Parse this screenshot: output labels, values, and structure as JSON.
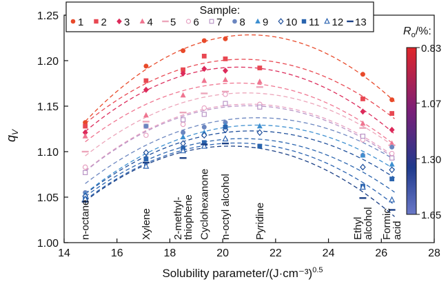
{
  "chart_data": {
    "type": "scatter",
    "title": "",
    "xlabel": "Solubility parameter/(J·cm⁻³)",
    "xlabel_exponent": "0.5",
    "ylabel_main": "q",
    "ylabel_sub": "V",
    "xlim": [
      14,
      28
    ],
    "ylim": [
      1.0,
      1.25
    ],
    "xticks": [
      "14",
      "16",
      "18",
      "20",
      "22",
      "24",
      "26",
      "28"
    ],
    "yticks": [
      "1.00",
      "1.05",
      "1.10",
      "1.15",
      "1.20",
      "1.25"
    ],
    "grid": false,
    "legend": {
      "title": "Sample:",
      "position": "top",
      "entries": [
        "1",
        "2",
        "3",
        "4",
        "5",
        "6",
        "7",
        "8",
        "9",
        "10",
        "11",
        "12",
        "13"
      ]
    },
    "solvents": [
      {
        "name": "n-octane",
        "lines": [
          "n-octane"
        ],
        "x": 14.8
      },
      {
        "name": "Xylene",
        "lines": [
          "Xylene"
        ],
        "x": 17.1
      },
      {
        "name": "2-methylthiophene",
        "lines": [
          "2-methyl-",
          "thiophene"
        ],
        "x": 18.5
      },
      {
        "name": "Cyclohexanone",
        "lines": [
          "Cyclohexanone"
        ],
        "x": 19.3
      },
      {
        "name": "n-octyl alcohol",
        "lines": [
          "n-octyl alcohol"
        ],
        "x": 20.1
      },
      {
        "name": "Pyridine",
        "lines": [
          "Pyridine"
        ],
        "x": 21.4
      },
      {
        "name": "Ethyl alcohol",
        "lines": [
          "Ethyl",
          "alcohol"
        ],
        "x": 25.3
      },
      {
        "name": "Formic acid",
        "lines": [
          "Formic",
          "acid"
        ],
        "x": 26.4
      }
    ],
    "colorbar": {
      "title_main": "R",
      "title_sub": "o",
      "title_rest": "/%:",
      "tick_labels": [
        "0.83",
        "1.07",
        "1.30",
        "1.65"
      ],
      "colors": [
        "#e0262a",
        "#7a1f78",
        "#1f3a8c",
        "#6a78c8"
      ]
    },
    "series": [
      {
        "name": "1",
        "color": "#e84a2a",
        "marker": "circle-filled",
        "values": [
          1.132,
          1.194,
          1.211,
          1.222,
          1.224,
          null,
          1.185,
          1.157
        ]
      },
      {
        "name": "2",
        "color": "#e84852",
        "marker": "square-filled",
        "values": [
          1.128,
          1.178,
          1.19,
          1.205,
          1.202,
          1.192,
          1.158,
          1.142
        ]
      },
      {
        "name": "3",
        "color": "#dc2a5a",
        "marker": "diamond-filled",
        "values": [
          1.121,
          1.168,
          1.186,
          1.191,
          1.189,
          null,
          1.144,
          1.124
        ]
      },
      {
        "name": "4",
        "color": "#ef7590",
        "marker": "triangle-filled",
        "values": [
          1.117,
          1.14,
          1.162,
          1.178,
          1.179,
          1.177,
          1.131,
          1.109
        ]
      },
      {
        "name": "5",
        "color": "#eca5ba",
        "marker": "dash",
        "values": [
          1.1,
          1.133,
          1.143,
          1.164,
          1.166,
          1.171,
          1.126,
          1.107
        ]
      },
      {
        "name": "6",
        "color": "#e7a2c2",
        "marker": "circle-open",
        "values": [
          1.083,
          1.118,
          1.13,
          1.148,
          1.163,
          1.152,
          1.113,
          1.098
        ]
      },
      {
        "name": "7",
        "color": "#b994c6",
        "marker": "square-open",
        "values": [
          1.077,
          1.128,
          1.135,
          1.141,
          1.153,
          1.149,
          1.117,
          1.093
        ]
      },
      {
        "name": "8",
        "color": "#6b86c0",
        "marker": "circle-filled",
        "values": [
          1.055,
          1.128,
          1.121,
          1.127,
          1.132,
          null,
          1.096,
          1.105
        ]
      },
      {
        "name": "9",
        "color": "#3d8fd0",
        "marker": "triangle-filled",
        "values": [
          1.053,
          1.099,
          1.116,
          1.121,
          1.129,
          1.128,
          1.096,
          1.086
        ]
      },
      {
        "name": "10",
        "color": "#1f4f9b",
        "marker": "diamond-open",
        "values": [
          1.051,
          1.099,
          1.109,
          1.118,
          1.124,
          1.121,
          1.083,
          1.08
        ]
      },
      {
        "name": "11",
        "color": "#2a64ae",
        "marker": "square-filled",
        "values": [
          1.048,
          1.092,
          1.104,
          1.11,
          1.127,
          1.106,
          1.062,
          1.07
        ]
      },
      {
        "name": "12",
        "color": "#2a62b0",
        "marker": "triangle-open",
        "values": [
          1.048,
          1.084,
          1.101,
          1.106,
          1.114,
          null,
          1.061,
          1.047
        ]
      },
      {
        "name": "13",
        "color": "#1a3f85",
        "marker": "dash",
        "values": [
          1.045,
          1.088,
          1.093,
          1.108,
          1.109,
          null,
          1.049,
          1.036
        ]
      }
    ]
  }
}
